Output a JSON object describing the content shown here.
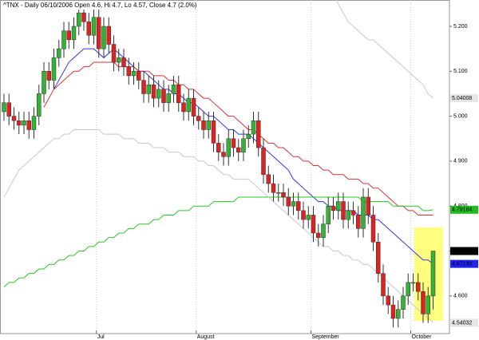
{
  "chart_data": {
    "type": "candlestick",
    "title": "^TNX - Daily 06/10/2006 Open 4.6, Hi 4.7, Lo 4.57, Close 4.7 (2.0%)",
    "categories": [
      null,
      null,
      null,
      null,
      null,
      null,
      null,
      null,
      null,
      null,
      null,
      null,
      null,
      null,
      null,
      null,
      null,
      null,
      null,
      "Jul",
      null,
      null,
      null,
      null,
      null,
      null,
      null,
      null,
      null,
      null,
      null,
      null,
      null,
      null,
      null,
      null,
      null,
      null,
      null,
      "August",
      null,
      null,
      null,
      null,
      null,
      null,
      null,
      null,
      null,
      null,
      null,
      null,
      null,
      null,
      null,
      null,
      null,
      null,
      null,
      null,
      null,
      null,
      "September",
      null,
      null,
      null,
      null,
      null,
      null,
      null,
      null,
      null,
      null,
      null,
      null,
      null,
      null,
      null,
      null,
      null,
      null,
      null,
      "October",
      null,
      null,
      null,
      null
    ],
    "open": [
      5.01,
      5.03,
      5.0,
      4.99,
      4.98,
      4.99,
      4.97,
      5.0,
      5.05,
      5.1,
      5.08,
      5.13,
      5.15,
      5.19,
      5.17,
      5.2,
      5.23,
      5.21,
      5.18,
      5.22,
      5.15,
      5.2,
      5.16,
      5.12,
      5.13,
      5.11,
      5.09,
      5.1,
      5.08,
      5.05,
      5.07,
      5.04,
      5.06,
      5.03,
      5.05,
      5.07,
      5.03,
      5.01,
      5.04,
      5.0,
      4.99,
      4.97,
      4.99,
      4.94,
      4.92,
      4.91,
      4.95,
      4.93,
      4.92,
      4.95,
      4.96,
      4.99,
      4.93,
      4.87,
      4.85,
      4.83,
      4.83,
      4.82,
      4.8,
      4.81,
      4.79,
      4.77,
      4.78,
      4.74,
      4.73,
      4.76,
      4.8,
      4.79,
      4.81,
      4.77,
      4.79,
      4.78,
      4.75,
      4.82,
      4.78,
      4.72,
      4.65,
      4.6,
      4.58,
      4.55,
      4.57,
      4.6,
      4.63,
      4.63,
      4.61,
      4.56,
      4.6
    ],
    "high": [
      5.05,
      5.05,
      5.02,
      5.01,
      5.01,
      5.01,
      5.02,
      5.07,
      5.12,
      5.12,
      5.15,
      5.17,
      5.21,
      5.21,
      5.22,
      5.25,
      5.25,
      5.23,
      5.24,
      5.24,
      5.22,
      5.22,
      5.18,
      5.15,
      5.15,
      5.13,
      5.12,
      5.12,
      5.1,
      5.09,
      5.09,
      5.08,
      5.08,
      5.07,
      5.09,
      5.09,
      5.05,
      5.06,
      5.06,
      5.02,
      5.01,
      5.01,
      5.01,
      4.96,
      4.94,
      4.97,
      4.97,
      4.95,
      4.97,
      4.98,
      5.01,
      5.01,
      4.95,
      4.89,
      4.87,
      4.85,
      4.85,
      4.84,
      4.83,
      4.83,
      4.81,
      4.8,
      4.8,
      4.76,
      4.78,
      4.82,
      4.82,
      4.83,
      4.83,
      4.81,
      4.81,
      4.8,
      4.84,
      4.84,
      4.8,
      4.74,
      4.67,
      4.62,
      4.6,
      4.59,
      4.62,
      4.65,
      4.65,
      4.65,
      4.63,
      4.62,
      4.7
    ],
    "low": [
      4.99,
      4.98,
      4.97,
      4.96,
      4.96,
      4.95,
      4.95,
      4.98,
      5.03,
      5.06,
      5.06,
      5.11,
      5.13,
      5.15,
      5.15,
      5.18,
      5.19,
      5.16,
      5.16,
      5.13,
      5.13,
      5.14,
      5.1,
      5.1,
      5.09,
      5.07,
      5.07,
      5.06,
      5.03,
      5.03,
      5.02,
      5.02,
      5.01,
      5.01,
      5.03,
      5.01,
      4.99,
      4.99,
      4.98,
      4.97,
      4.95,
      4.95,
      4.92,
      4.9,
      4.89,
      4.89,
      4.91,
      4.9,
      4.9,
      4.93,
      4.94,
      4.91,
      4.85,
      4.83,
      4.81,
      4.81,
      4.8,
      4.78,
      4.78,
      4.77,
      4.75,
      4.75,
      4.72,
      4.71,
      4.71,
      4.74,
      4.77,
      4.77,
      4.75,
      4.75,
      4.76,
      4.73,
      4.73,
      4.76,
      4.7,
      4.63,
      4.58,
      4.56,
      4.53,
      4.53,
      4.55,
      4.58,
      4.61,
      4.59,
      4.54,
      4.54,
      4.57
    ],
    "close": [
      5.03,
      5.0,
      4.99,
      4.98,
      4.99,
      4.97,
      5.0,
      5.05,
      5.1,
      5.08,
      5.13,
      5.15,
      5.19,
      5.17,
      5.2,
      5.23,
      5.21,
      5.18,
      5.22,
      5.15,
      5.2,
      5.16,
      5.12,
      5.13,
      5.11,
      5.09,
      5.1,
      5.08,
      5.05,
      5.07,
      5.04,
      5.06,
      5.03,
      5.05,
      5.07,
      5.03,
      5.01,
      5.04,
      5.0,
      4.99,
      4.97,
      4.99,
      4.94,
      4.92,
      4.91,
      4.95,
      4.93,
      4.92,
      4.95,
      4.96,
      4.99,
      4.93,
      4.87,
      4.85,
      4.83,
      4.83,
      4.82,
      4.8,
      4.81,
      4.79,
      4.77,
      4.78,
      4.74,
      4.73,
      4.76,
      4.8,
      4.79,
      4.81,
      4.77,
      4.79,
      4.78,
      4.75,
      4.82,
      4.78,
      4.72,
      4.65,
      4.6,
      4.58,
      4.55,
      4.57,
      4.6,
      4.63,
      4.63,
      4.61,
      4.56,
      4.6,
      4.7
    ],
    "up_color": "#33b233",
    "down_color": "#dd2222",
    "overlays": [
      {
        "color": "#3333ee",
        "values": [
          null,
          null,
          null,
          null,
          null,
          null,
          null,
          null,
          null,
          null,
          5.06,
          5.08,
          5.1,
          5.12,
          5.13,
          5.14,
          5.15,
          5.15,
          5.15,
          5.14,
          5.13,
          5.14,
          5.15,
          5.14,
          5.13,
          5.12,
          5.11,
          5.1,
          5.1,
          5.09,
          5.08,
          5.07,
          5.06,
          5.06,
          5.05,
          5.05,
          5.04,
          5.03,
          5.03,
          5.02,
          5.01,
          5.0,
          5.0,
          4.99,
          4.98,
          4.97,
          4.97,
          4.96,
          4.96,
          4.96,
          4.95,
          4.94,
          4.93,
          4.92,
          4.91,
          4.9,
          4.89,
          4.88,
          4.86,
          4.85,
          4.84,
          4.83,
          4.82,
          4.81,
          4.81,
          4.8,
          4.8,
          4.79,
          4.79,
          4.79,
          4.79,
          4.78,
          4.78,
          4.78,
          4.77,
          4.77,
          4.76,
          4.75,
          4.74,
          4.73,
          4.72,
          4.71,
          4.7,
          4.69,
          4.68,
          4.68,
          4.67139
        ]
      },
      {
        "color": "#e03030",
        "values": [
          null,
          null,
          null,
          null,
          null,
          null,
          null,
          null,
          5.02,
          5.04,
          5.06,
          5.07,
          5.08,
          5.09,
          5.1,
          5.1,
          5.11,
          5.11,
          5.12,
          5.12,
          5.12,
          5.12,
          5.12,
          5.11,
          5.11,
          5.11,
          5.11,
          5.1,
          5.1,
          5.1,
          5.09,
          5.09,
          5.09,
          5.08,
          5.08,
          5.07,
          5.07,
          5.06,
          5.06,
          5.05,
          5.04,
          5.04,
          5.03,
          5.02,
          5.01,
          5.0,
          5.0,
          4.99,
          4.98,
          4.97,
          4.97,
          4.96,
          4.95,
          4.94,
          4.94,
          4.93,
          4.93,
          4.92,
          4.91,
          4.91,
          4.9,
          4.9,
          4.89,
          4.89,
          4.88,
          4.88,
          4.87,
          4.87,
          4.87,
          4.86,
          4.86,
          4.86,
          4.85,
          4.85,
          4.84,
          4.84,
          4.83,
          4.82,
          4.81,
          4.8,
          4.8,
          4.79,
          4.79,
          4.78,
          4.78,
          4.78,
          4.78
        ]
      },
      {
        "color": "#22cc22",
        "values": [
          4.62,
          4.63,
          4.63,
          4.64,
          4.64,
          4.65,
          4.65,
          4.66,
          4.66,
          4.67,
          4.67,
          4.68,
          4.68,
          4.69,
          4.69,
          4.7,
          4.7,
          4.71,
          4.71,
          4.72,
          4.72,
          4.73,
          4.73,
          4.74,
          4.74,
          4.75,
          4.75,
          4.76,
          4.76,
          4.76,
          4.77,
          4.77,
          4.78,
          4.78,
          4.78,
          4.79,
          4.79,
          4.79,
          4.8,
          4.8,
          4.8,
          4.8,
          4.81,
          4.81,
          4.81,
          4.81,
          4.81,
          4.82,
          4.82,
          4.82,
          4.82,
          4.82,
          4.82,
          4.82,
          4.82,
          4.82,
          4.82,
          4.82,
          4.82,
          4.82,
          4.82,
          4.82,
          4.82,
          4.82,
          4.82,
          4.82,
          4.82,
          4.82,
          4.82,
          4.82,
          4.82,
          4.82,
          4.81,
          4.81,
          4.81,
          4.81,
          4.81,
          4.81,
          4.8,
          4.8,
          4.8,
          4.8,
          4.8,
          4.8,
          4.79,
          4.79,
          4.79184
        ]
      },
      {
        "color": "#c8c8c8",
        "values": [
          null,
          null,
          null,
          null,
          null,
          null,
          null,
          null,
          null,
          null,
          null,
          null,
          null,
          null,
          null,
          null,
          null,
          null,
          null,
          null,
          null,
          null,
          null,
          null,
          null,
          null,
          null,
          null,
          null,
          null,
          null,
          null,
          null,
          null,
          null,
          null,
          null,
          null,
          null,
          null,
          null,
          null,
          null,
          null,
          null,
          null,
          null,
          null,
          null,
          null,
          null,
          null,
          null,
          null,
          null,
          null,
          null,
          null,
          null,
          null,
          null,
          null,
          null,
          null,
          null,
          null,
          5.27,
          5.25,
          5.23,
          5.21,
          5.2,
          5.19,
          5.18,
          5.17,
          5.17,
          5.16,
          5.15,
          5.14,
          5.13,
          5.12,
          5.11,
          5.1,
          5.09,
          5.08,
          5.07,
          5.05,
          5.04008
        ]
      },
      {
        "color": "#c8c8c8",
        "values": [
          4.82,
          4.84,
          4.86,
          4.88,
          4.89,
          4.9,
          4.91,
          4.92,
          4.93,
          4.94,
          4.95,
          4.95,
          4.96,
          4.96,
          4.97,
          4.97,
          4.97,
          4.97,
          4.97,
          4.97,
          4.96,
          4.96,
          4.96,
          4.96,
          4.95,
          4.95,
          4.95,
          4.94,
          4.94,
          4.94,
          4.93,
          4.93,
          4.93,
          4.92,
          4.92,
          4.92,
          4.91,
          4.91,
          4.91,
          4.9,
          4.9,
          4.89,
          4.89,
          4.88,
          4.87,
          4.87,
          4.86,
          4.86,
          4.86,
          4.86,
          4.85,
          4.84,
          4.83,
          4.82,
          4.81,
          4.8,
          4.79,
          4.78,
          4.77,
          4.76,
          4.75,
          4.74,
          4.73,
          4.72,
          4.71,
          4.71,
          4.7,
          4.7,
          4.69,
          4.69,
          4.68,
          4.68,
          4.67,
          4.67,
          4.66,
          4.65,
          4.64,
          4.63,
          4.62,
          4.61,
          4.6,
          4.59,
          4.58,
          4.57,
          4.56,
          4.55,
          4.54032
        ]
      }
    ],
    "ylim": [
      4.5162,
      5.2586
    ],
    "yticks": [
      {
        "value": 4.6,
        "label": "4.600"
      },
      {
        "value": 4.7,
        "label": "4.700"
      },
      {
        "value": 4.8,
        "label": "4.800"
      },
      {
        "value": 4.9,
        "label": "4.900"
      },
      {
        "value": 5.0,
        "label": "5.000"
      },
      {
        "value": 5.1,
        "label": "5.100"
      },
      {
        "value": 5.2,
        "label": "5.200"
      }
    ],
    "end_labels": [
      {
        "value": 5.04008,
        "background": "#e6e6e6",
        "text_color": "#000000"
      },
      {
        "value": 4.79184,
        "background": "#22bb22",
        "text_color": "#000000"
      },
      {
        "value": 4.7,
        "label": "4.70",
        "background": "#000000",
        "text_color": "#ffffff"
      },
      {
        "value": 4.67139,
        "background": "#2222ee",
        "text_color": "#ffffff"
      },
      {
        "value": 4.54032,
        "background": "#e6e6e6",
        "text_color": "#000000"
      }
    ]
  }
}
